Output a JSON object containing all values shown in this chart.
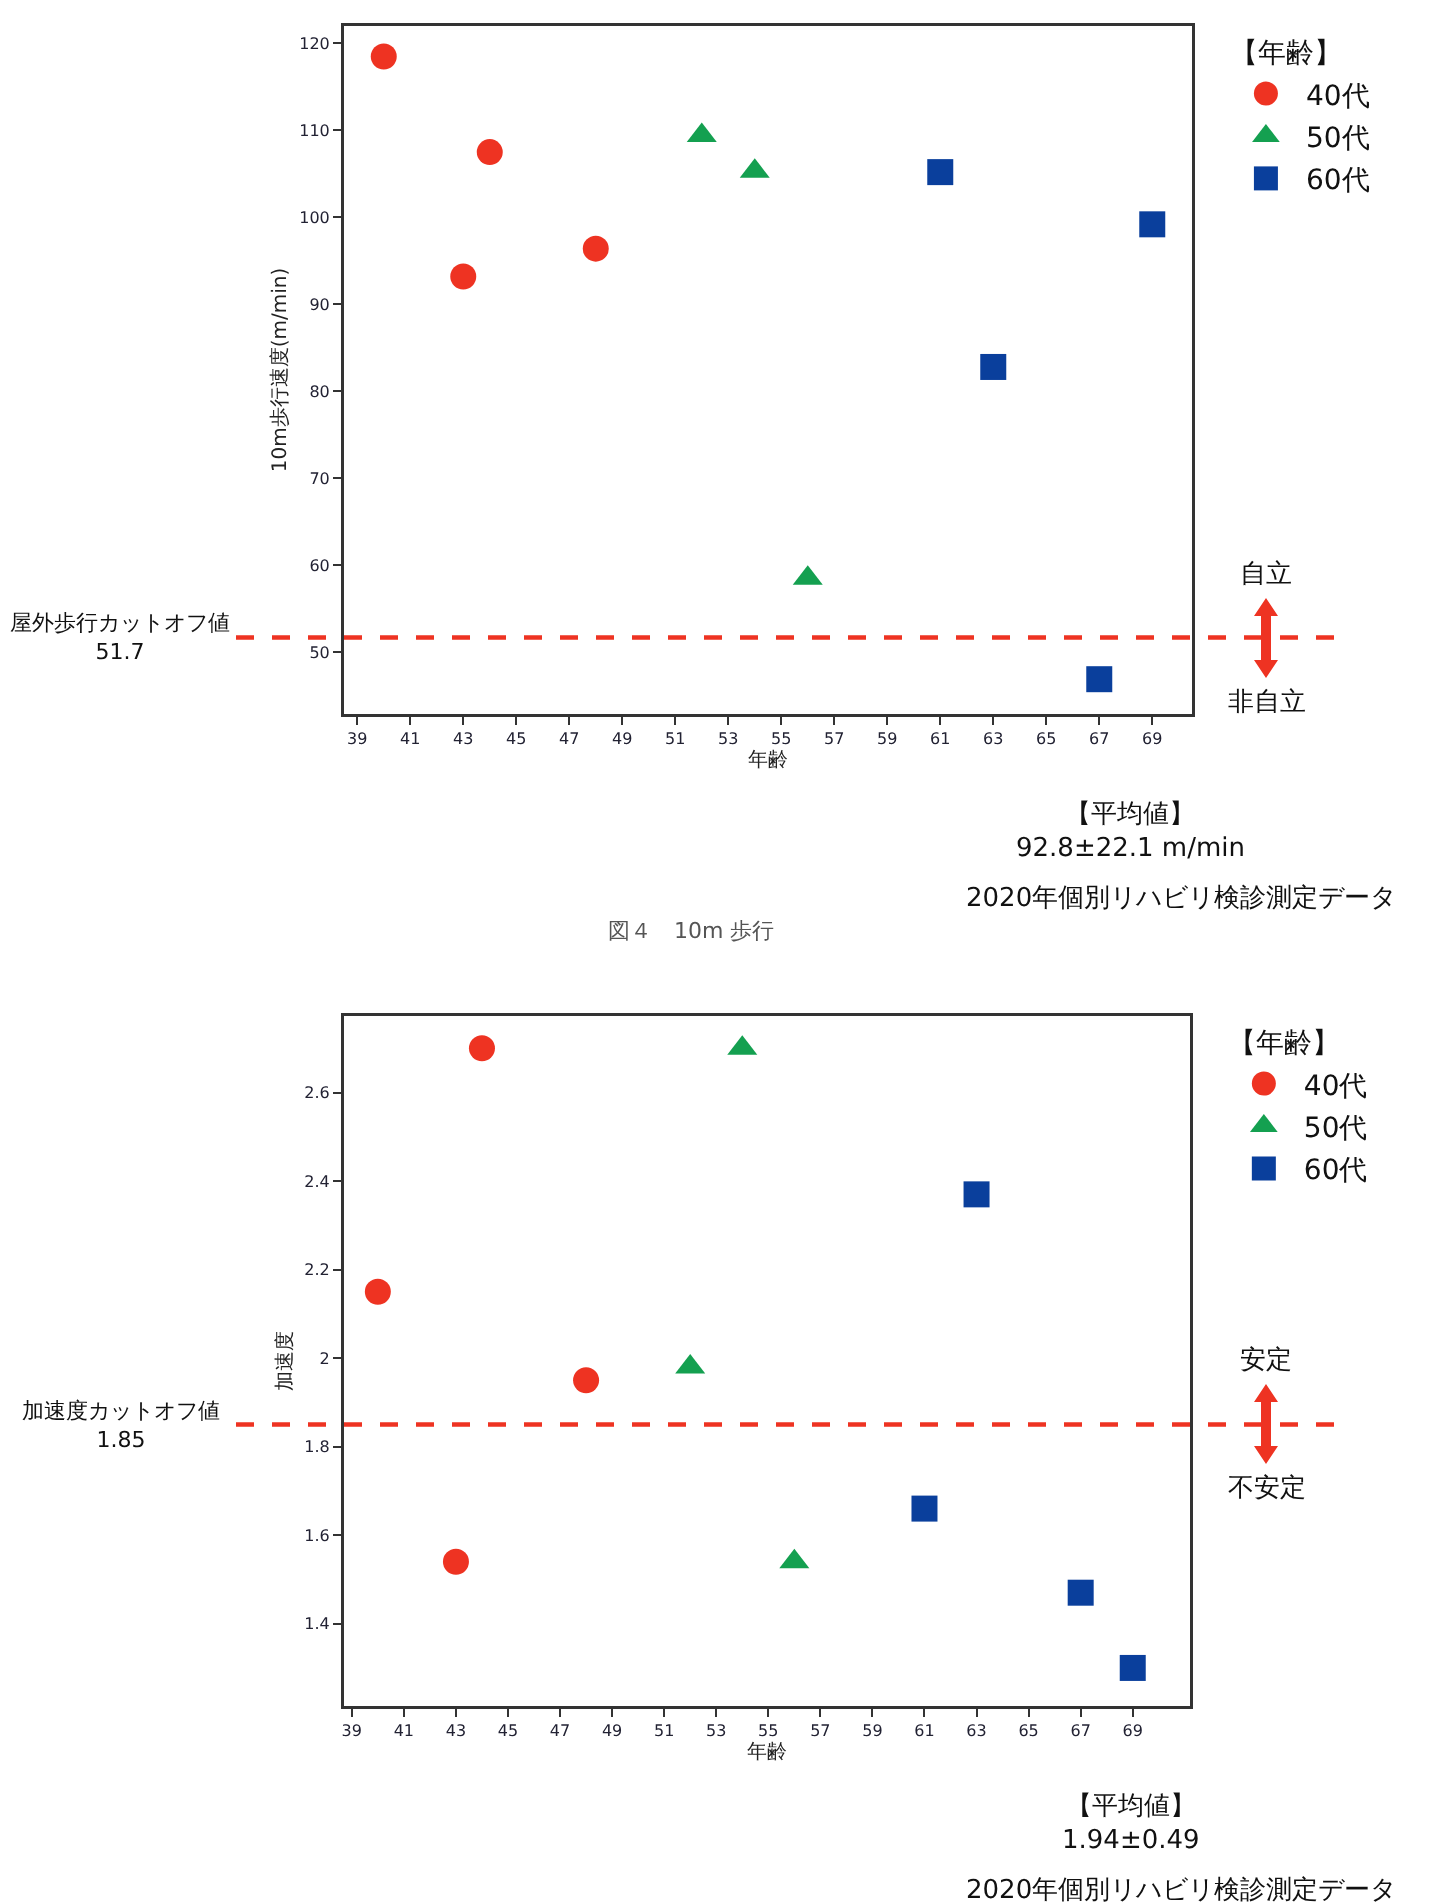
{
  "chart_data": [
    {
      "type": "scatter",
      "xlabel": "年齢",
      "ylabel": "10m歩行速度(m/min)",
      "legend_title": "【年齢】",
      "legend": "top right",
      "grid": false,
      "xlim": [
        38.5,
        70.5
      ],
      "xticks": [
        39,
        41,
        43,
        45,
        47,
        49,
        51,
        53,
        55,
        57,
        59,
        61,
        63,
        65,
        67,
        69
      ],
      "ylim": [
        42.9,
        122
      ],
      "yticks": [
        50,
        60,
        70,
        80,
        90,
        100,
        110,
        120
      ],
      "series": [
        {
          "name": "40代",
          "color": "#ee3322",
          "marker": "circle",
          "x": [
            40,
            43,
            44,
            48
          ],
          "values": [
            118.5,
            93.2,
            107.5,
            96.4
          ]
        },
        {
          "name": "50代",
          "color": "#14a050",
          "marker": "triangle",
          "x": [
            52,
            54,
            56
          ],
          "values": [
            109.4,
            105.3,
            58.5
          ]
        },
        {
          "name": "60代",
          "color": "#0a3f9c",
          "marker": "square",
          "x": [
            61,
            63,
            67,
            69
          ],
          "values": [
            105.2,
            82.8,
            46.9,
            99.2
          ]
        }
      ],
      "ref_lines": [
        {
          "axis": "y",
          "value": 51.7,
          "label": "屋外歩行カットオフ値\n51.7",
          "color": "#ee3322",
          "line_style": "dashed"
        }
      ],
      "annotations": [
        "自立",
        "非自立",
        "【平均値】\n92.8±22.1 m/min",
        "2020年個別リハビリ検診測定データ",
        "図４　10m 歩行"
      ]
    },
    {
      "type": "scatter",
      "xlabel": "年齢",
      "ylabel": "加速度",
      "legend_title": "【年齢】",
      "legend": "top right",
      "grid": false,
      "xlim": [
        38.7,
        71.2
      ],
      "xticks": [
        39,
        41,
        43,
        45,
        47,
        49,
        51,
        53,
        55,
        57,
        59,
        61,
        63,
        65,
        67,
        69
      ],
      "ylim": [
        1.214,
        2.773
      ],
      "yticks": [
        1.4,
        1.6,
        1.8,
        2,
        2.2,
        2.4,
        2.6
      ],
      "series": [
        {
          "name": "40代",
          "color": "#ee3322",
          "marker": "circle",
          "x": [
            40,
            43,
            44,
            48
          ],
          "values": [
            2.15,
            1.54,
            2.7,
            1.95
          ]
        },
        {
          "name": "50代",
          "color": "#14a050",
          "marker": "triangle",
          "x": [
            52,
            54,
            56
          ],
          "values": [
            1.98,
            2.7,
            1.54
          ]
        },
        {
          "name": "60代",
          "color": "#0a3f9c",
          "marker": "square",
          "x": [
            61,
            63,
            67,
            69
          ],
          "values": [
            1.66,
            2.37,
            1.47,
            1.3
          ]
        }
      ],
      "ref_lines": [
        {
          "axis": "y",
          "value": 1.85,
          "label": "加速度カットオフ値\n1.85",
          "color": "#ee3322",
          "line_style": "dashed"
        }
      ],
      "annotations": [
        "安定",
        "不安定",
        "【平均値】\n1.94±0.49",
        "2020年個別リハビリ検診測定データ"
      ]
    }
  ]
}
